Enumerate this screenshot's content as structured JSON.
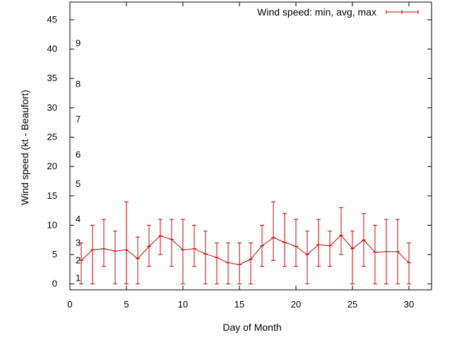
{
  "chart_data": {
    "type": "line",
    "title": "",
    "xlabel": "Day of Month",
    "ylabel": "Wind speed (kt - Beaufort)",
    "xlim": [
      0,
      32
    ],
    "ylim": [
      -1,
      48
    ],
    "x_ticks": [
      "0",
      "5",
      "10",
      "15",
      "20",
      "25",
      "30"
    ],
    "y_ticks": [
      "0",
      "5",
      "10",
      "15",
      "20",
      "25",
      "30",
      "35",
      "40",
      "45"
    ],
    "grid": false,
    "legend_position": "top-right",
    "colors": {
      "series": "#cc0000",
      "axis": "#000000"
    },
    "beaufort_annotations": [
      {
        "label": "1",
        "y": 1
      },
      {
        "label": "2",
        "y": 4
      },
      {
        "label": "3",
        "y": 7
      },
      {
        "label": "4",
        "y": 11
      },
      {
        "label": "5",
        "y": 17
      },
      {
        "label": "6",
        "y": 22
      },
      {
        "label": "7",
        "y": 28
      },
      {
        "label": "8",
        "y": 34
      },
      {
        "label": "9",
        "y": 41
      }
    ],
    "series": [
      {
        "name": "Wind speed: min, avg, max",
        "x": [
          1,
          2,
          3,
          4,
          5,
          6,
          7,
          8,
          9,
          10,
          11,
          12,
          13,
          14,
          15,
          16,
          17,
          18,
          19,
          20,
          21,
          22,
          23,
          24,
          25,
          26,
          27,
          28,
          29,
          30
        ],
        "avg": [
          4.0,
          5.8,
          6.0,
          5.6,
          5.8,
          4.3,
          6.4,
          8.2,
          7.6,
          5.8,
          6.0,
          5.1,
          4.5,
          3.6,
          3.3,
          4.2,
          6.5,
          7.9,
          7.1,
          6.4,
          5.0,
          6.7,
          6.5,
          8.3,
          6.0,
          7.5,
          5.4,
          5.5,
          5.5,
          3.6
        ],
        "min": [
          0,
          0,
          3,
          0,
          0,
          0,
          3,
          5,
          3,
          0,
          3,
          0,
          0,
          0,
          0,
          0,
          3,
          4,
          3,
          3,
          0,
          3,
          3,
          5,
          0,
          3,
          0,
          0,
          0,
          0
        ],
        "max": [
          7,
          10,
          11,
          9,
          14,
          8,
          10,
          11,
          11,
          11,
          10,
          9,
          7,
          7,
          7,
          7,
          10,
          14,
          12,
          11,
          9,
          11,
          9,
          13,
          9,
          12,
          10,
          11,
          11,
          7
        ]
      }
    ]
  }
}
